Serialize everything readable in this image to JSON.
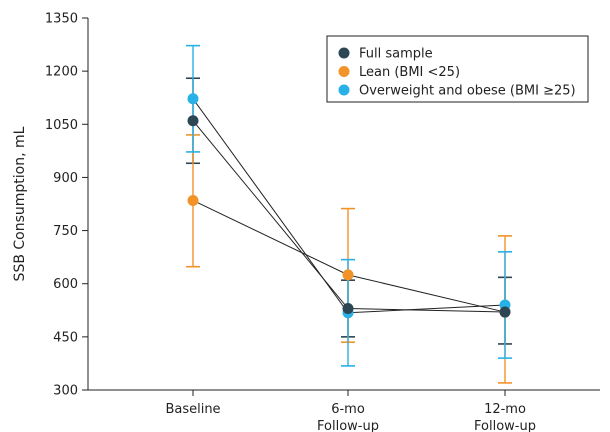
{
  "chart_data": {
    "type": "line",
    "title": "",
    "xlabel": "",
    "ylabel": "SSB Consumption, mL",
    "ylim": [
      300,
      1350
    ],
    "yticks": [
      300,
      450,
      600,
      750,
      900,
      1050,
      1200,
      1350
    ],
    "categories": [
      [
        "Baseline"
      ],
      [
        "6-mo",
        "Follow-up"
      ],
      [
        "12-mo",
        "Follow-up"
      ]
    ],
    "grid": false,
    "legend_position": "top-right",
    "series": [
      {
        "name": "Full sample",
        "color": "#2d4654",
        "values": [
          1060,
          530,
          520
        ],
        "error_low": [
          940,
          450,
          430
        ],
        "error_high": [
          1180,
          610,
          618
        ]
      },
      {
        "name": "Lean (BMI <25)",
        "color": "#f2932a",
        "values": [
          835,
          625,
          520
        ],
        "error_low": [
          648,
          435,
          320
        ],
        "error_high": [
          1020,
          812,
          735
        ]
      },
      {
        "name": "Overweight and obese (BMI ≥25)",
        "color": "#27b1e6",
        "values": [
          1122,
          518,
          540
        ],
        "error_low": [
          972,
          368,
          390
        ],
        "error_high": [
          1272,
          668,
          690
        ]
      }
    ]
  }
}
